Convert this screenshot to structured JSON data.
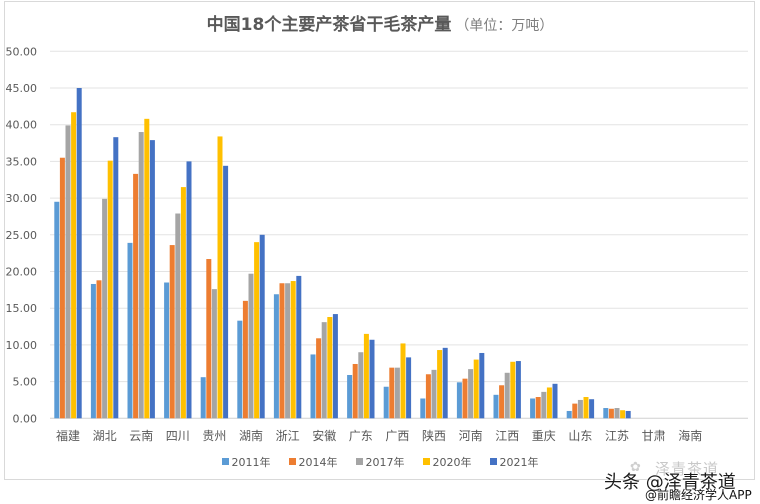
{
  "chart": {
    "title_main": "中国18个主要产茶省干毛茶产量",
    "title_unit": "（单位：万吨）"
  },
  "watermark": {
    "background_text": "泽青茶道",
    "main_text": "头条 @泽青茶道",
    "sub_text": "@前瞻经济学人APP"
  },
  "chart_data": {
    "type": "bar",
    "title": "中国18个主要产茶省干毛茶产量（单位：万吨）",
    "xlabel": "",
    "ylabel": "",
    "ylim": [
      0,
      50
    ],
    "yticks": [
      "0.00",
      "5.00",
      "10.00",
      "15.00",
      "20.00",
      "25.00",
      "30.00",
      "35.00",
      "40.00",
      "45.00",
      "50.00"
    ],
    "grid": true,
    "legend_position": "bottom",
    "categories": [
      "福建",
      "湖北",
      "云南",
      "四川",
      "贵州",
      "湖南",
      "浙江",
      "安徽",
      "广东",
      "广西",
      "陕西",
      "河南",
      "江西",
      "重庆",
      "山东",
      "江苏",
      "甘肃",
      "海南"
    ],
    "series": [
      {
        "name": "2011年",
        "color": "#5B9BD5",
        "values": [
          29.5,
          18.3,
          23.9,
          18.5,
          5.6,
          13.3,
          16.9,
          8.7,
          5.9,
          4.3,
          2.7,
          4.9,
          3.2,
          2.7,
          1.0,
          1.4,
          0.0,
          0.0
        ]
      },
      {
        "name": "2014年",
        "color": "#ED7D31",
        "values": [
          35.5,
          18.8,
          33.3,
          23.6,
          21.7,
          16.0,
          18.4,
          10.9,
          7.4,
          6.9,
          6.0,
          5.4,
          4.5,
          2.9,
          2.0,
          1.3,
          0.0,
          0.0
        ]
      },
      {
        "name": "2017年",
        "color": "#A5A5A5",
        "values": [
          39.9,
          29.9,
          39.0,
          27.9,
          17.6,
          19.7,
          18.4,
          13.1,
          9.0,
          6.9,
          6.6,
          6.7,
          6.2,
          3.6,
          2.5,
          1.4,
          0.0,
          0.0
        ]
      },
      {
        "name": "2020年",
        "color": "#FFC000",
        "values": [
          41.7,
          35.1,
          40.8,
          31.5,
          38.4,
          24.0,
          18.7,
          13.8,
          11.5,
          10.2,
          9.3,
          8.0,
          7.7,
          4.2,
          2.9,
          1.1,
          0.0,
          0.0
        ]
      },
      {
        "name": "2021年",
        "color": "#4472C4",
        "values": [
          45.0,
          38.3,
          37.9,
          35.0,
          34.4,
          25.0,
          19.4,
          14.2,
          10.7,
          8.3,
          9.6,
          8.9,
          7.8,
          4.7,
          2.6,
          1.0,
          0.0,
          0.0
        ]
      }
    ]
  }
}
